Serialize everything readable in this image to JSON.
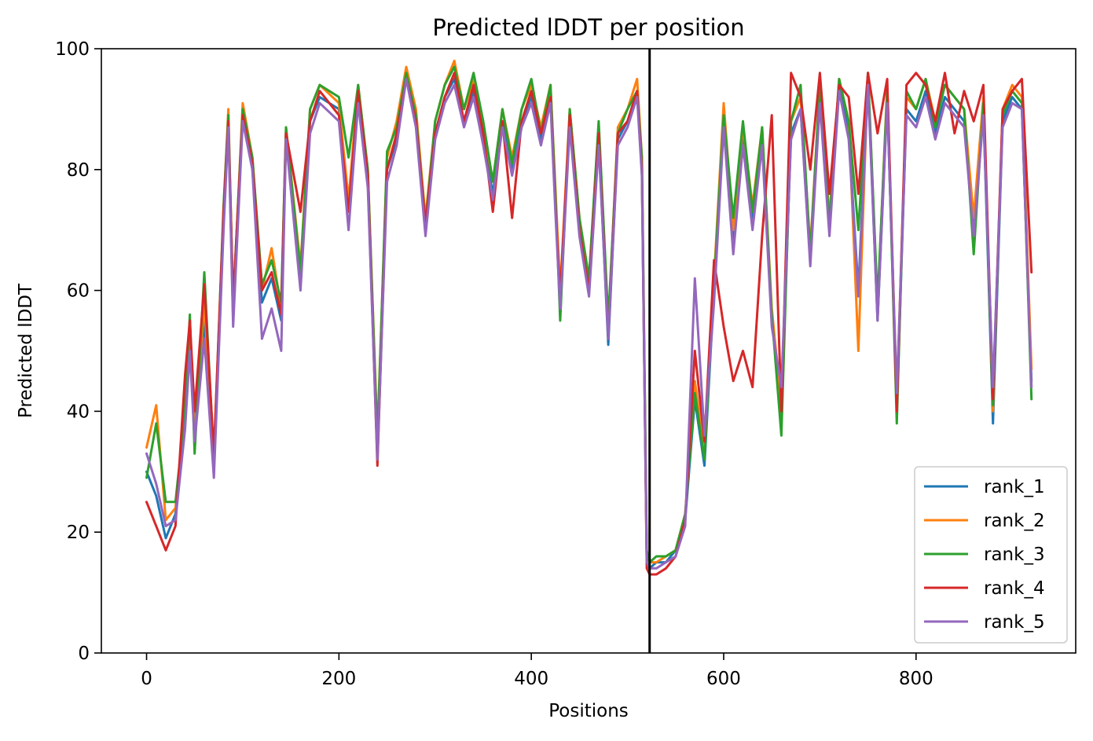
{
  "chart_data": {
    "type": "line",
    "title": "Predicted lDDT per position",
    "xlabel": "Positions",
    "ylabel": "Predicted lDDT",
    "xlim": [
      -47,
      966
    ],
    "ylim": [
      0,
      100
    ],
    "xticks": [
      0,
      200,
      400,
      600,
      800
    ],
    "yticks": [
      0,
      20,
      40,
      60,
      80,
      100
    ],
    "grid": false,
    "legend_position": "bottom-right",
    "chain_break": 523,
    "series": [
      {
        "name": "rank_1",
        "color": "#1f77b4",
        "x": [
          0,
          10,
          20,
          30,
          40,
          45,
          50,
          60,
          70,
          80,
          85,
          90,
          100,
          110,
          120,
          130,
          140,
          145,
          160,
          170,
          180,
          200,
          210,
          220,
          230,
          240,
          250,
          260,
          270,
          280,
          290,
          300,
          310,
          320,
          330,
          340,
          350,
          360,
          370,
          380,
          390,
          400,
          410,
          420,
          425,
          430,
          440,
          450,
          460,
          470,
          480,
          490,
          500,
          510,
          515,
          520,
          523,
          530,
          540,
          550,
          560,
          570,
          580,
          590,
          600,
          610,
          620,
          630,
          640,
          650,
          660,
          670,
          680,
          690,
          700,
          710,
          720,
          730,
          740,
          750,
          760,
          770,
          780,
          790,
          800,
          810,
          820,
          830,
          840,
          850,
          860,
          870,
          880,
          890,
          900,
          910,
          920
        ],
        "y": [
          30,
          26,
          19,
          23,
          38,
          55,
          37,
          55,
          30,
          72,
          88,
          55,
          89,
          80,
          58,
          62,
          55,
          86,
          62,
          88,
          92,
          90,
          73,
          92,
          78,
          33,
          80,
          85,
          96,
          88,
          70,
          86,
          92,
          95,
          88,
          93,
          85,
          76,
          88,
          80,
          88,
          92,
          85,
          92,
          75,
          58,
          88,
          70,
          60,
          85,
          51,
          85,
          88,
          93,
          80,
          15,
          14,
          15,
          15,
          17,
          22,
          42,
          31,
          60,
          88,
          68,
          85,
          72,
          85,
          55,
          40,
          86,
          90,
          65,
          92,
          70,
          94,
          86,
          60,
          95,
          55,
          92,
          40,
          90,
          88,
          93,
          86,
          92,
          90,
          88,
          70,
          90,
          38,
          88,
          92,
          90,
          45
        ]
      },
      {
        "name": "rank_2",
        "color": "#ff7f0e",
        "x": [
          0,
          10,
          20,
          30,
          40,
          45,
          50,
          60,
          70,
          80,
          85,
          90,
          100,
          110,
          120,
          130,
          140,
          145,
          160,
          170,
          180,
          200,
          210,
          220,
          230,
          240,
          250,
          260,
          270,
          280,
          290,
          300,
          310,
          320,
          330,
          340,
          350,
          360,
          370,
          380,
          390,
          400,
          410,
          420,
          425,
          430,
          440,
          450,
          460,
          470,
          480,
          490,
          500,
          510,
          515,
          520,
          523,
          530,
          540,
          550,
          560,
          570,
          580,
          590,
          600,
          610,
          620,
          630,
          640,
          650,
          660,
          670,
          680,
          690,
          700,
          710,
          720,
          730,
          740,
          750,
          760,
          770,
          780,
          790,
          800,
          810,
          820,
          830,
          840,
          850,
          860,
          870,
          880,
          890,
          900,
          910,
          920
        ],
        "y": [
          34,
          41,
          22,
          24,
          40,
          55,
          36,
          58,
          31,
          73,
          90,
          57,
          91,
          82,
          60,
          67,
          57,
          87,
          64,
          90,
          94,
          91,
          75,
          94,
          80,
          36,
          82,
          88,
          97,
          90,
          72,
          88,
          94,
          98,
          90,
          95,
          87,
          78,
          90,
          82,
          90,
          94,
          87,
          94,
          77,
          60,
          90,
          72,
          62,
          87,
          54,
          87,
          90,
          95,
          82,
          16,
          15,
          15,
          16,
          17,
          23,
          45,
          33,
          62,
          91,
          70,
          87,
          74,
          87,
          57,
          41,
          88,
          92,
          67,
          94,
          72,
          95,
          88,
          50,
          96,
          57,
          94,
          42,
          92,
          90,
          95,
          88,
          94,
          92,
          90,
          72,
          92,
          40,
          90,
          94,
          92,
          47
        ]
      },
      {
        "name": "rank_3",
        "color": "#2ca02c",
        "x": [
          0,
          10,
          20,
          30,
          40,
          45,
          50,
          60,
          70,
          80,
          85,
          90,
          100,
          110,
          120,
          130,
          140,
          145,
          160,
          170,
          180,
          200,
          210,
          220,
          230,
          240,
          250,
          260,
          270,
          280,
          290,
          300,
          310,
          320,
          330,
          340,
          350,
          360,
          370,
          380,
          390,
          400,
          410,
          420,
          425,
          430,
          440,
          450,
          460,
          470,
          480,
          490,
          500,
          510,
          515,
          520,
          523,
          530,
          540,
          550,
          560,
          570,
          580,
          590,
          600,
          610,
          620,
          630,
          640,
          650,
          660,
          670,
          680,
          690,
          700,
          710,
          720,
          730,
          740,
          750,
          760,
          770,
          780,
          790,
          800,
          810,
          820,
          830,
          840,
          850,
          860,
          870,
          880,
          890,
          900,
          910,
          920
        ],
        "y": [
          29,
          38,
          25,
          25,
          40,
          56,
          33,
          63,
          32,
          74,
          89,
          58,
          90,
          82,
          61,
          65,
          58,
          87,
          63,
          90,
          94,
          92,
          82,
          94,
          80,
          35,
          83,
          87,
          96,
          89,
          71,
          88,
          94,
          97,
          90,
          96,
          88,
          78,
          90,
          81,
          90,
          95,
          86,
          94,
          76,
          55,
          90,
          72,
          62,
          88,
          55,
          86,
          90,
          93,
          82,
          17,
          15,
          16,
          16,
          17,
          23,
          43,
          32,
          61,
          89,
          72,
          88,
          73,
          87,
          56,
          36,
          88,
          94,
          66,
          94,
          71,
          95,
          88,
          70,
          96,
          58,
          93,
          38,
          93,
          90,
          95,
          87,
          94,
          92,
          90,
          66,
          91,
          41,
          89,
          93,
          91,
          42
        ]
      },
      {
        "name": "rank_4",
        "color": "#d62728",
        "x": [
          0,
          10,
          20,
          30,
          40,
          45,
          50,
          60,
          70,
          80,
          85,
          90,
          100,
          110,
          120,
          130,
          140,
          145,
          160,
          170,
          180,
          200,
          210,
          220,
          230,
          240,
          250,
          260,
          270,
          280,
          290,
          300,
          310,
          320,
          330,
          340,
          350,
          360,
          370,
          380,
          390,
          400,
          410,
          420,
          425,
          430,
          440,
          450,
          460,
          470,
          480,
          490,
          500,
          510,
          515,
          520,
          523,
          530,
          540,
          550,
          560,
          570,
          580,
          590,
          600,
          610,
          620,
          630,
          640,
          650,
          660,
          670,
          680,
          690,
          700,
          710,
          720,
          730,
          740,
          750,
          760,
          770,
          780,
          790,
          800,
          810,
          820,
          830,
          840,
          850,
          860,
          870,
          880,
          890,
          900,
          910,
          920
        ],
        "y": [
          25,
          21,
          17,
          21,
          46,
          55,
          40,
          61,
          33,
          73,
          88,
          58,
          89,
          81,
          60,
          63,
          56,
          86,
          73,
          88,
          93,
          89,
          73,
          93,
          79,
          31,
          80,
          86,
          95,
          88,
          71,
          86,
          92,
          96,
          88,
          94,
          86,
          73,
          88,
          72,
          88,
          93,
          86,
          92,
          74,
          59,
          89,
          70,
          60,
          86,
          52,
          86,
          88,
          93,
          80,
          14,
          13,
          13,
          14,
          16,
          22,
          50,
          35,
          65,
          54,
          45,
          50,
          44,
          69,
          89,
          40,
          96,
          92,
          80,
          96,
          76,
          94,
          92,
          76,
          96,
          86,
          95,
          40,
          94,
          96,
          94,
          88,
          96,
          86,
          93,
          88,
          94,
          42,
          90,
          93,
          95,
          63
        ]
      },
      {
        "name": "rank_5",
        "color": "#9467bd",
        "x": [
          0,
          10,
          20,
          30,
          40,
          45,
          50,
          60,
          70,
          80,
          85,
          90,
          100,
          110,
          120,
          130,
          140,
          145,
          160,
          170,
          180,
          200,
          210,
          220,
          230,
          240,
          250,
          260,
          270,
          280,
          290,
          300,
          310,
          320,
          330,
          340,
          350,
          360,
          370,
          380,
          390,
          400,
          410,
          420,
          425,
          430,
          440,
          450,
          460,
          470,
          480,
          490,
          500,
          510,
          515,
          520,
          523,
          530,
          540,
          550,
          560,
          570,
          580,
          590,
          600,
          610,
          620,
          630,
          640,
          650,
          660,
          670,
          680,
          690,
          700,
          710,
          720,
          730,
          740,
          750,
          760,
          770,
          780,
          790,
          800,
          810,
          820,
          830,
          840,
          850,
          860,
          870,
          880,
          890,
          900,
          910,
          920
        ],
        "y": [
          33,
          28,
          21,
          22,
          37,
          50,
          35,
          52,
          29,
          70,
          87,
          54,
          88,
          80,
          52,
          57,
          50,
          85,
          60,
          86,
          91,
          88,
          70,
          91,
          77,
          32,
          78,
          84,
          95,
          87,
          69,
          85,
          91,
          94,
          87,
          92,
          84,
          75,
          87,
          79,
          87,
          91,
          84,
          91,
          73,
          57,
          87,
          69,
          59,
          84,
          52,
          84,
          87,
          92,
          79,
          15,
          14,
          14,
          15,
          16,
          21,
          62,
          36,
          58,
          87,
          66,
          84,
          70,
          84,
          54,
          44,
          85,
          90,
          64,
          91,
          69,
          93,
          85,
          59,
          94,
          55,
          91,
          43,
          89,
          87,
          92,
          85,
          91,
          89,
          87,
          69,
          89,
          44,
          87,
          91,
          90,
          44
        ]
      }
    ]
  }
}
